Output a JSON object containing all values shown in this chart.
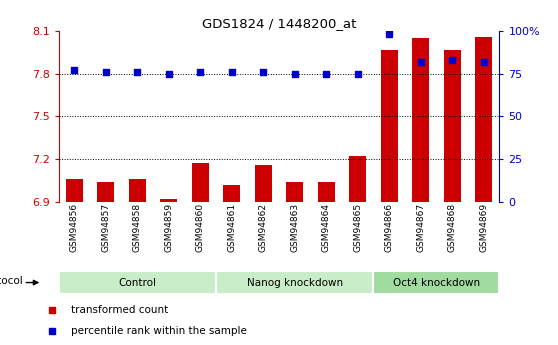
{
  "title": "GDS1824 / 1448200_at",
  "samples": [
    "GSM94856",
    "GSM94857",
    "GSM94858",
    "GSM94859",
    "GSM94860",
    "GSM94861",
    "GSM94862",
    "GSM94863",
    "GSM94864",
    "GSM94865",
    "GSM94866",
    "GSM94867",
    "GSM94868",
    "GSM94869"
  ],
  "transformed_count": [
    7.06,
    7.04,
    7.06,
    6.92,
    7.17,
    7.02,
    7.16,
    7.04,
    7.04,
    7.22,
    7.97,
    8.05,
    7.97,
    8.06
  ],
  "percentile_rank": [
    77,
    76,
    76,
    75,
    76,
    76,
    76,
    75,
    75,
    75,
    98,
    82,
    83,
    82
  ],
  "ylim_left": [
    6.9,
    8.1
  ],
  "ylim_right": [
    0,
    100
  ],
  "yticks_left": [
    6.9,
    7.2,
    7.5,
    7.8,
    8.1
  ],
  "yticks_right": [
    0,
    25,
    50,
    75,
    100
  ],
  "ytick_labels_right": [
    "0",
    "25",
    "50",
    "75",
    "100%"
  ],
  "hlines": [
    7.2,
    7.5,
    7.8
  ],
  "groups": [
    {
      "label": "Control",
      "start": 0,
      "end": 5
    },
    {
      "label": "Nanog knockdown",
      "start": 5,
      "end": 10
    },
    {
      "label": "Oct4 knockdown",
      "start": 10,
      "end": 14
    }
  ],
  "group_colors": [
    "#c8edc8",
    "#c8edc8",
    "#a0dba0"
  ],
  "bar_color": "#cc0000",
  "dot_color": "#0000cc",
  "bar_width": 0.55,
  "background_color": "#ffffff",
  "axis_color_left": "#cc0000",
  "axis_color_right": "#0000cc",
  "legend_items": [
    {
      "label": "transformed count",
      "color": "#cc0000"
    },
    {
      "label": "percentile rank within the sample",
      "color": "#0000cc"
    }
  ],
  "plot_bg": "#ffffff"
}
